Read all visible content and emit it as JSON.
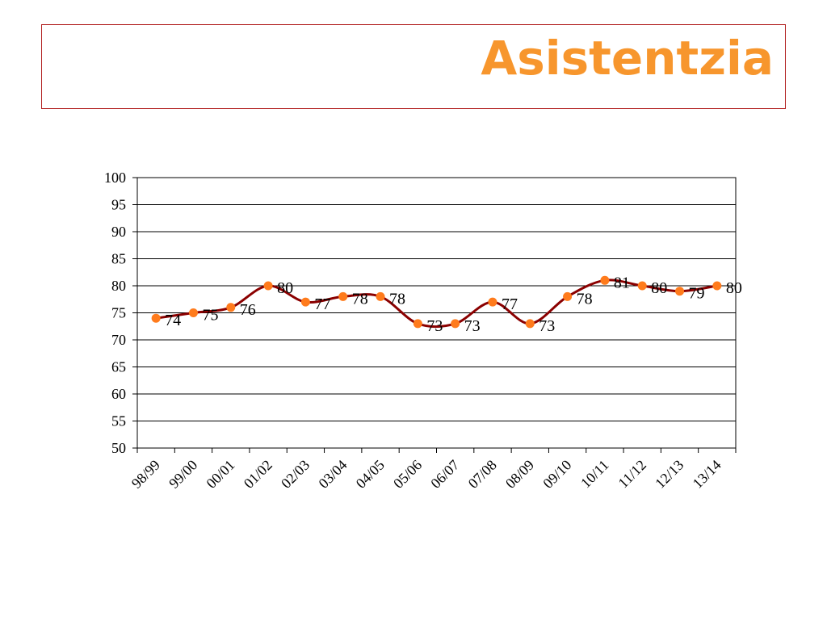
{
  "header": {
    "title": "Asistentzia"
  },
  "colors": {
    "title": "#f7962d",
    "line": "#8b0000",
    "marker": "#ff7b1c",
    "border": "#b22222"
  },
  "chart_data": {
    "type": "line",
    "title": "",
    "xlabel": "",
    "ylabel": "",
    "ylim": [
      50,
      100
    ],
    "ytick_step": 5,
    "grid": "horizontal",
    "categories": [
      "98/99",
      "99/00",
      "00/01",
      "01/02",
      "02/03",
      "03/04",
      "04/05",
      "05/06",
      "06/07",
      "07/08",
      "08/09",
      "09/10",
      "10/11",
      "11/12",
      "12/13",
      "13/14"
    ],
    "series": [
      {
        "values": [
          74,
          75,
          76,
          80,
          77,
          78,
          78,
          73,
          73,
          77,
          73,
          78,
          81,
          80,
          79,
          80
        ]
      }
    ],
    "data_labels": [
      "74",
      "75",
      "76",
      "80",
      "77",
      "78",
      "78",
      "73",
      "73",
      "77",
      "73",
      "78",
      "81",
      "80",
      "79",
      "80"
    ]
  }
}
